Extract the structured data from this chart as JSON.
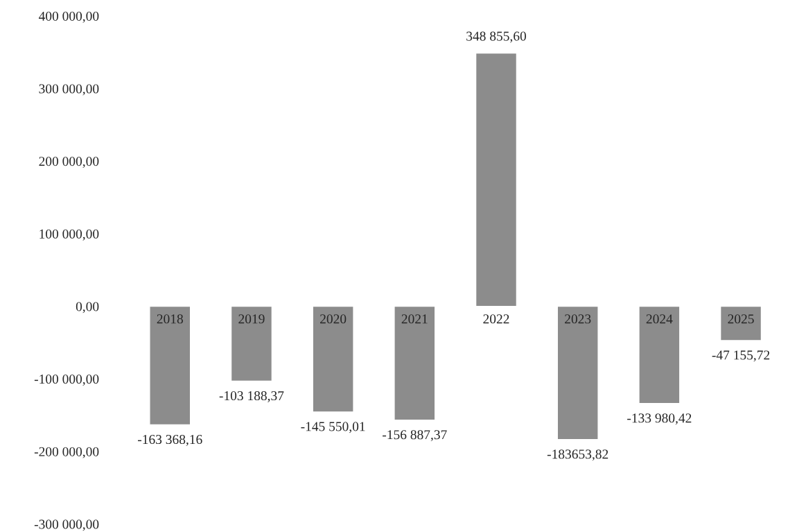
{
  "chart_data": {
    "type": "bar",
    "categories": [
      "2018",
      "2019",
      "2020",
      "2021",
      "2022",
      "2023",
      "2024",
      "2025"
    ],
    "values": [
      -163368.16,
      -103188.37,
      -145550.01,
      -156887.37,
      348855.6,
      -183653.82,
      -133980.42,
      -47155.72
    ],
    "value_labels": [
      "-163 368,16",
      "-103 188,37",
      "-145 550,01",
      "-156 887,37",
      "348 855,60",
      "-183653,82",
      "-133 980,42",
      "-47 155,72"
    ],
    "color": "#8c8c8c",
    "ylim": [
      -300000,
      400000
    ],
    "yticks": [
      {
        "value": -300000,
        "label": "-300 000,00"
      },
      {
        "value": -200000,
        "label": "-200 000,00"
      },
      {
        "value": -100000,
        "label": "-100 000,00"
      },
      {
        "value": 0,
        "label": "0,00"
      },
      {
        "value": 100000,
        "label": "100 000,00"
      },
      {
        "value": 200000,
        "label": "200 000,00"
      },
      {
        "value": 300000,
        "label": "300 000,00"
      },
      {
        "value": 400000,
        "label": "400 000,00"
      }
    ],
    "grid": false,
    "legend": false
  }
}
